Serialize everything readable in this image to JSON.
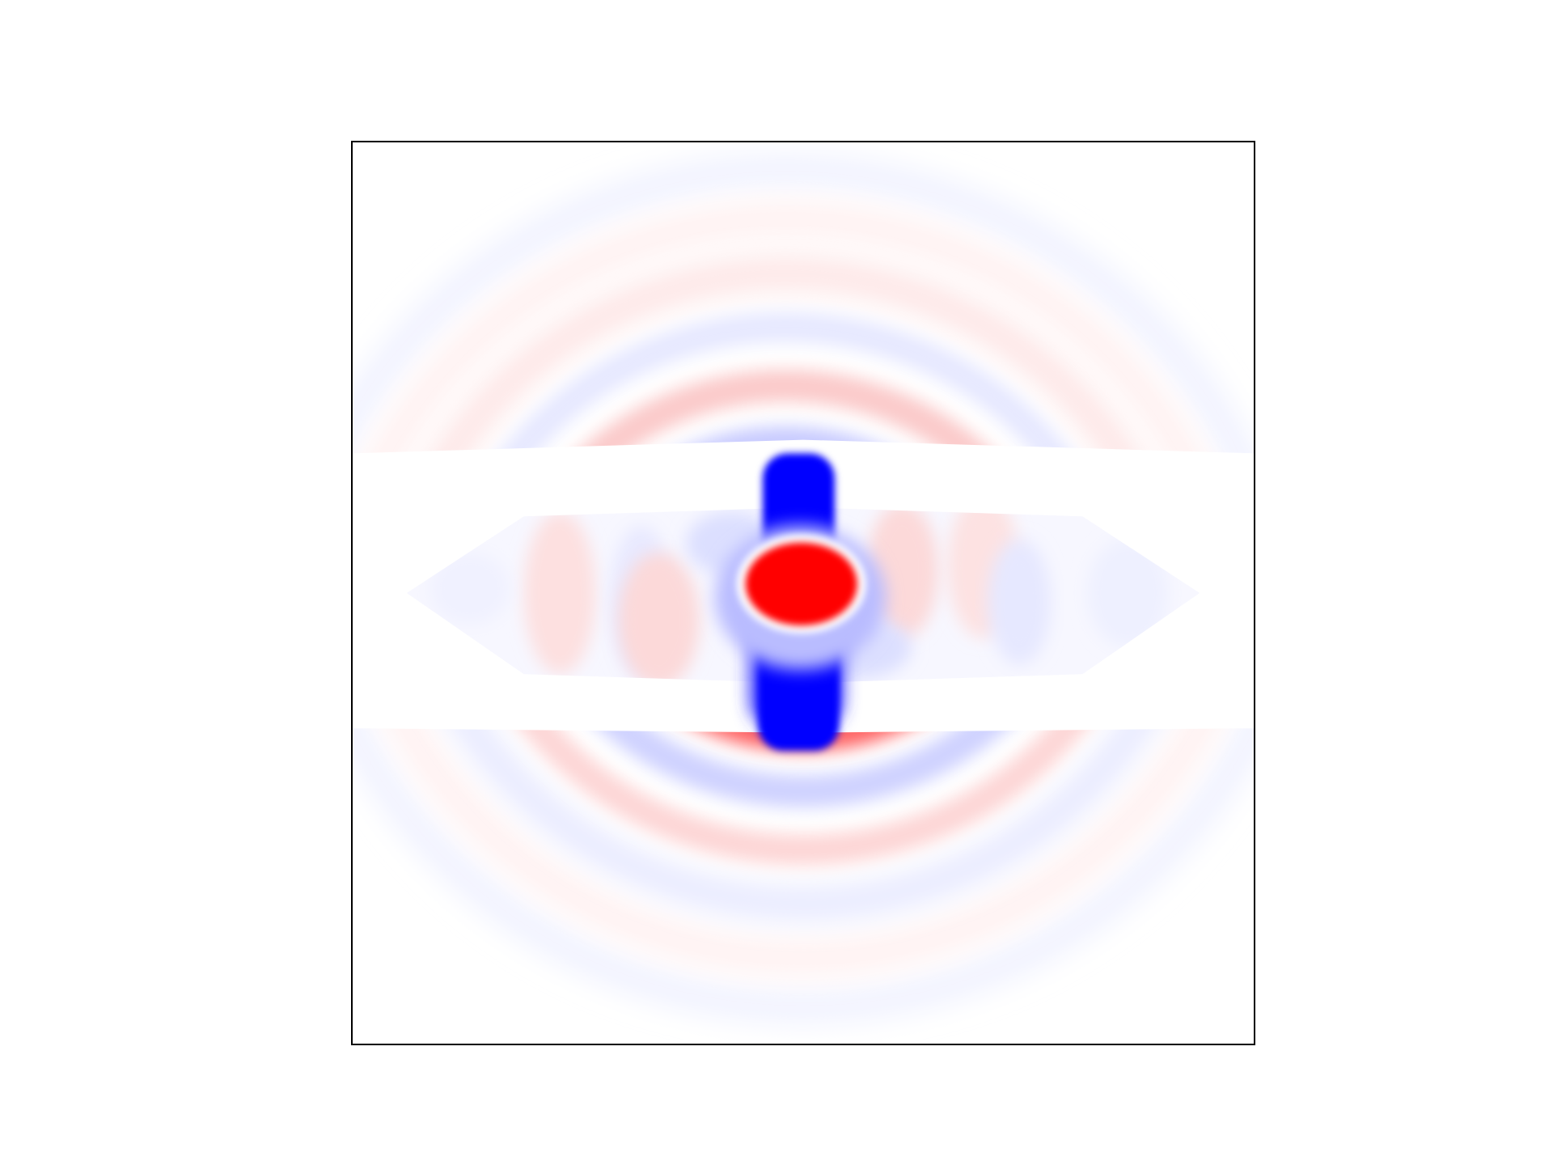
{
  "figure": {
    "colormap": [
      "#0000ff",
      "#ffffff",
      "#ff0000"
    ],
    "axis_ticks_visible": false,
    "frame_color": "#000000"
  }
}
